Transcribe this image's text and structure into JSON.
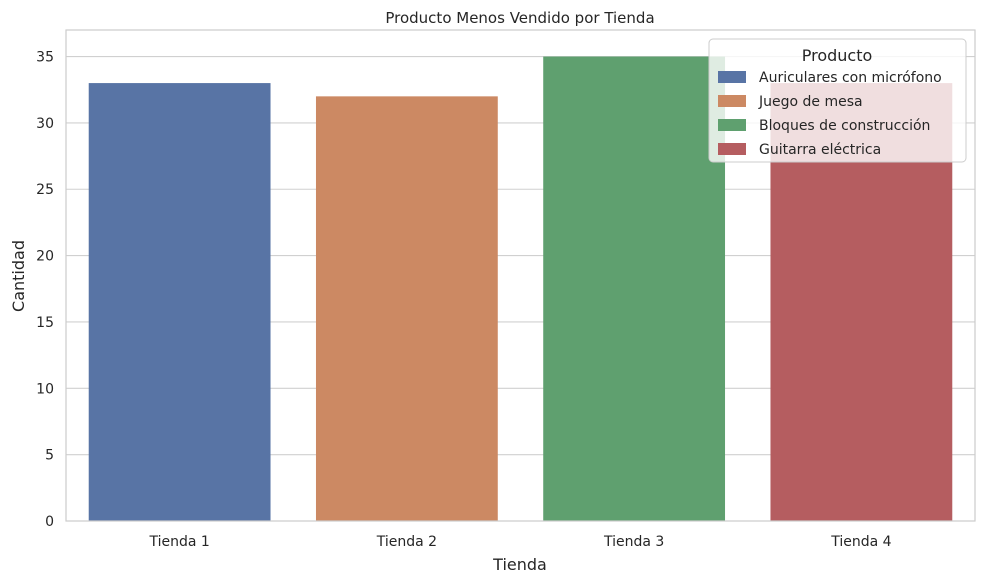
{
  "chart_data": {
    "type": "bar",
    "title": "Producto Menos Vendido por Tienda",
    "xlabel": "Tienda",
    "ylabel": "Cantidad",
    "categories": [
      "Tienda 1",
      "Tienda 2",
      "Tienda 3",
      "Tienda 4"
    ],
    "values": [
      33,
      32,
      35,
      33
    ],
    "products": [
      "Auriculares con micrófono",
      "Juego de mesa",
      "Bloques de construcción",
      "Guitarra eléctrica"
    ],
    "colors": [
      "#5874a5",
      "#cc8963",
      "#5fa06f",
      "#b55d60"
    ],
    "ylim": [
      0,
      37
    ],
    "yticks": [
      0,
      5,
      10,
      15,
      20,
      25,
      30,
      35
    ],
    "grid": true,
    "legend": {
      "title": "Producto",
      "placement": "top-right",
      "entries": [
        "Auriculares con micrófono",
        "Juego de mesa",
        "Bloques de construcción",
        "Guitarra eléctrica"
      ]
    }
  }
}
